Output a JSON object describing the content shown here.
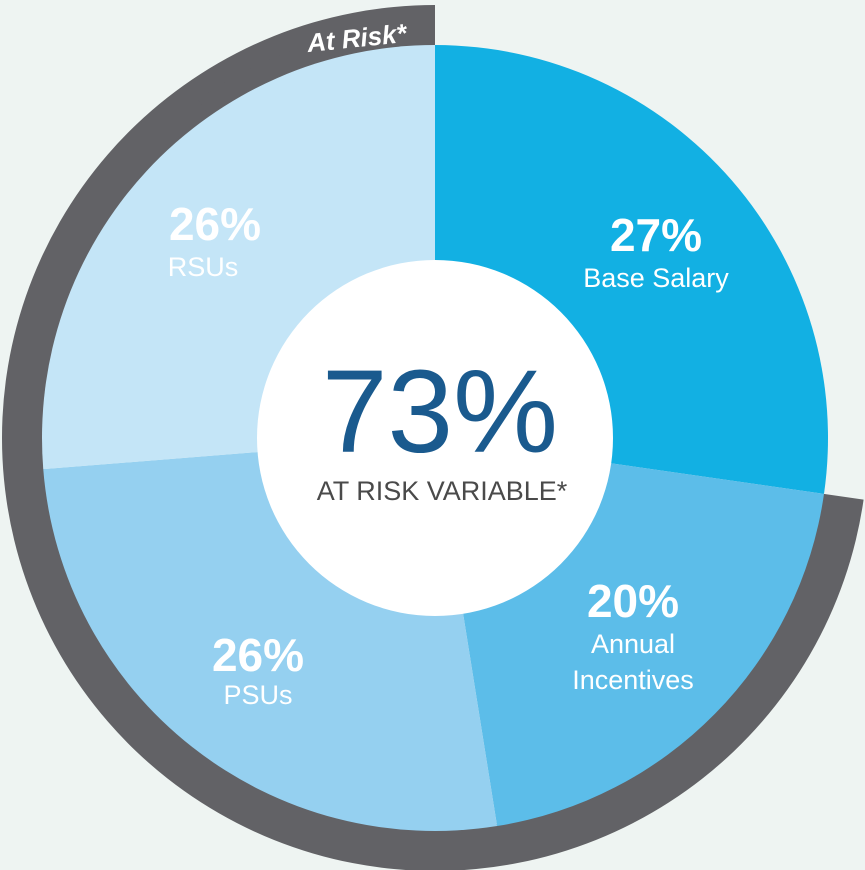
{
  "chart_data": {
    "type": "pie",
    "variant": "donut",
    "slices": [
      {
        "percent_label": "27%",
        "label": "Base Salary",
        "value": 27,
        "color": "#12b0e3"
      },
      {
        "percent_label": "20%",
        "label": "Annual Incentives",
        "value": 20,
        "color": "#5cbde9"
      },
      {
        "percent_label": "26%",
        "label": "PSUs",
        "value": 26,
        "color": "#95d0f0"
      },
      {
        "percent_label": "26%",
        "label": "RSUs",
        "value": 26,
        "color": "#c4e5f7"
      }
    ],
    "center": {
      "value": "73%",
      "label": "AT RISK VARIABLE*"
    },
    "at_risk_label": "At Risk*",
    "at_risk_ring_color": "#626266",
    "background_color": "#eef4f2"
  }
}
